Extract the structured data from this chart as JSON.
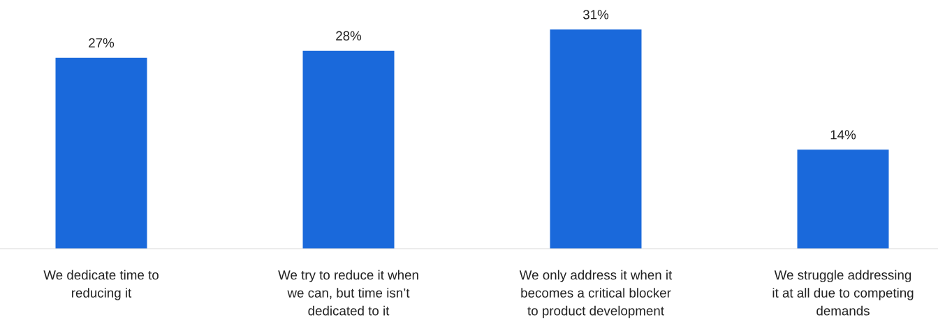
{
  "chart_data": {
    "type": "bar",
    "categories": [
      "We dedicate time to\nreducing it",
      "We try to reduce it when\nwe can, but time isn’t\ndedicated to it",
      "We only address it when it\nbecomes a critical blocker\nto product development",
      "We struggle addressing\nit at all due to competing\ndemands"
    ],
    "values": [
      27,
      28,
      31,
      14
    ],
    "value_labels": [
      "27%",
      "28%",
      "31%",
      "14%"
    ],
    "color": "#1a69db",
    "grid": false,
    "legend": false
  }
}
